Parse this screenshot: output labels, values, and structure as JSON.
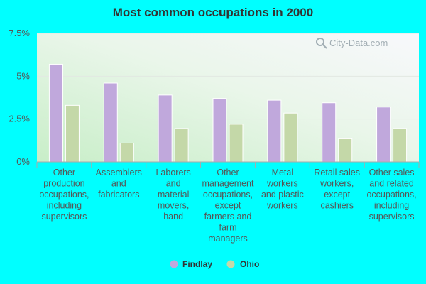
{
  "chart_data": {
    "type": "bar",
    "title": "Most common occupations in 2000",
    "categories": [
      [
        "Other",
        "production",
        "occupations,",
        "including",
        "supervisors"
      ],
      [
        "Assemblers",
        "and",
        "fabricators"
      ],
      [
        "Laborers",
        "and",
        "material",
        "movers,",
        "hand"
      ],
      [
        "Other",
        "management",
        "occupations,",
        "except",
        "farmers and",
        "farm",
        "managers"
      ],
      [
        "Metal",
        "workers",
        "and plastic",
        "workers"
      ],
      [
        "Retail sales",
        "workers,",
        "except",
        "cashiers"
      ],
      [
        "Other sales",
        "and related",
        "occupations,",
        "including",
        "supervisors"
      ]
    ],
    "series": [
      {
        "name": "Findlay",
        "color": "#c0a8dc",
        "values": [
          5.7,
          4.6,
          3.9,
          3.7,
          3.6,
          3.45,
          3.2
        ]
      },
      {
        "name": "Ohio",
        "color": "#c4d8a8",
        "values": [
          3.3,
          1.1,
          1.95,
          2.2,
          2.85,
          1.35,
          1.95
        ]
      }
    ],
    "ylim": [
      0,
      7.5
    ],
    "yticks": [
      0,
      2.5,
      5,
      7.5
    ],
    "ytick_labels": [
      "0%",
      "2.5%",
      "5%",
      "7.5%"
    ],
    "grid": true,
    "legend_position": "bottom"
  },
  "watermark": {
    "text": "City-Data.com",
    "icon": "magnifier-icon"
  }
}
